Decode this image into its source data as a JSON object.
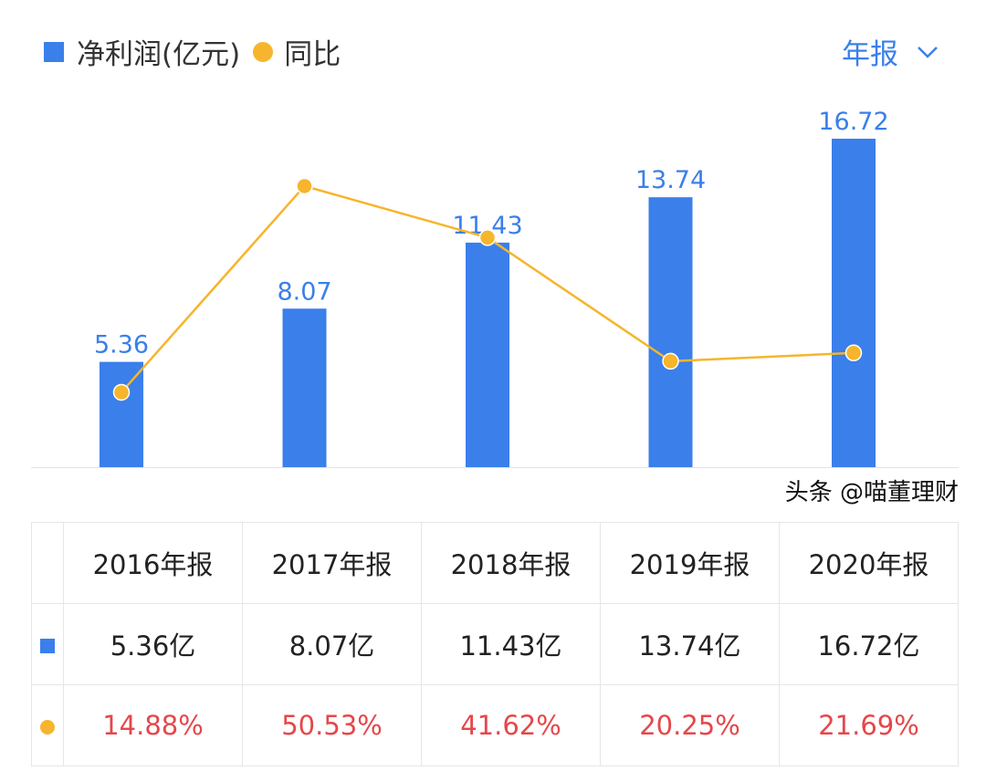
{
  "legend": {
    "bar_label": "净利润(亿元)",
    "line_label": "同比"
  },
  "period_selector": {
    "value": "年报"
  },
  "colors": {
    "bar": "#3a7fea",
    "line": "#f6b52c",
    "negative_text": "#e5474b"
  },
  "chart_data": {
    "type": "bar+line",
    "categories": [
      "2016年报",
      "2017年报",
      "2018年报",
      "2019年报",
      "2020年报"
    ],
    "series": [
      {
        "name": "净利润(亿元)",
        "type": "bar",
        "values": [
          5.36,
          8.07,
          11.43,
          13.74,
          16.72
        ],
        "labels": [
          "5.36",
          "8.07",
          "11.43",
          "13.74",
          "16.72"
        ]
      },
      {
        "name": "同比",
        "type": "line",
        "values": [
          14.88,
          50.53,
          41.62,
          20.25,
          21.69
        ]
      }
    ],
    "grid": false
  },
  "table": {
    "headers": [
      "2016年报",
      "2017年报",
      "2018年报",
      "2019年报",
      "2020年报"
    ],
    "profit": [
      "5.36亿",
      "8.07亿",
      "11.43亿",
      "13.74亿",
      "16.72亿"
    ],
    "yoy": [
      "14.88%",
      "50.53%",
      "41.62%",
      "20.25%",
      "21.69%"
    ]
  },
  "watermark": "头条 @喵董理财"
}
